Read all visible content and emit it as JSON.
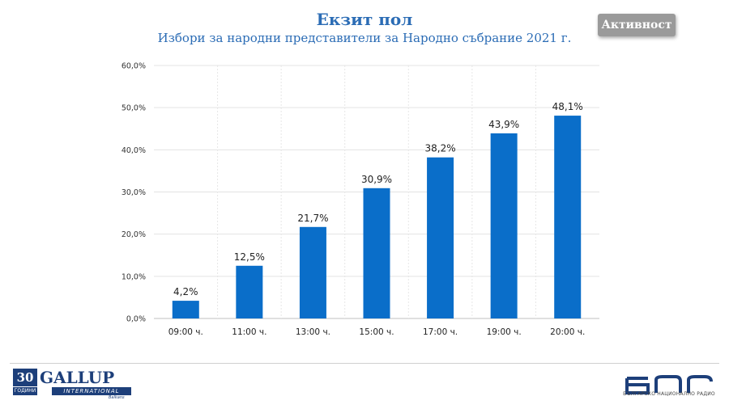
{
  "header": {
    "title": "Екзит пол",
    "subtitle": "Избори за народни представители за Народно събрание 2021 г.",
    "badge": "Активност"
  },
  "chart_data": {
    "type": "bar",
    "title": "",
    "xlabel": "",
    "ylabel": "",
    "categories": [
      "09:00 ч.",
      "11:00 ч.",
      "13:00 ч.",
      "15:00 ч.",
      "17:00 ч.",
      "19:00 ч.",
      "20:00 ч."
    ],
    "values": [
      4.2,
      12.5,
      21.7,
      30.9,
      38.2,
      43.9,
      48.1
    ],
    "value_labels": [
      "4,2%",
      "12,5%",
      "21,7%",
      "30,9%",
      "38,2%",
      "43,9%",
      "48,1%"
    ],
    "ylim": [
      0,
      60
    ],
    "yticks": [
      0,
      10,
      20,
      30,
      40,
      50,
      60
    ],
    "ytick_labels": [
      "0,0%",
      "10,0%",
      "20,0%",
      "30,0%",
      "40,0%",
      "50,0%",
      "60,0%"
    ],
    "grid": true,
    "bar_color": "#0a6ec9"
  },
  "footer": {
    "gallup_years": "30",
    "gallup_years_sub": "ГОДИНИ",
    "gallup_name": "GALLUP",
    "gallup_intl": "INTERNATIONAL",
    "gallup_region": "Balkans",
    "bnr_name": "БЪЛГАРСКО НАЦИОНАЛНО РАДИО",
    "bnr_logo_icon": "bnr-logo-icon",
    "brand_color": "#1d3f7a"
  }
}
